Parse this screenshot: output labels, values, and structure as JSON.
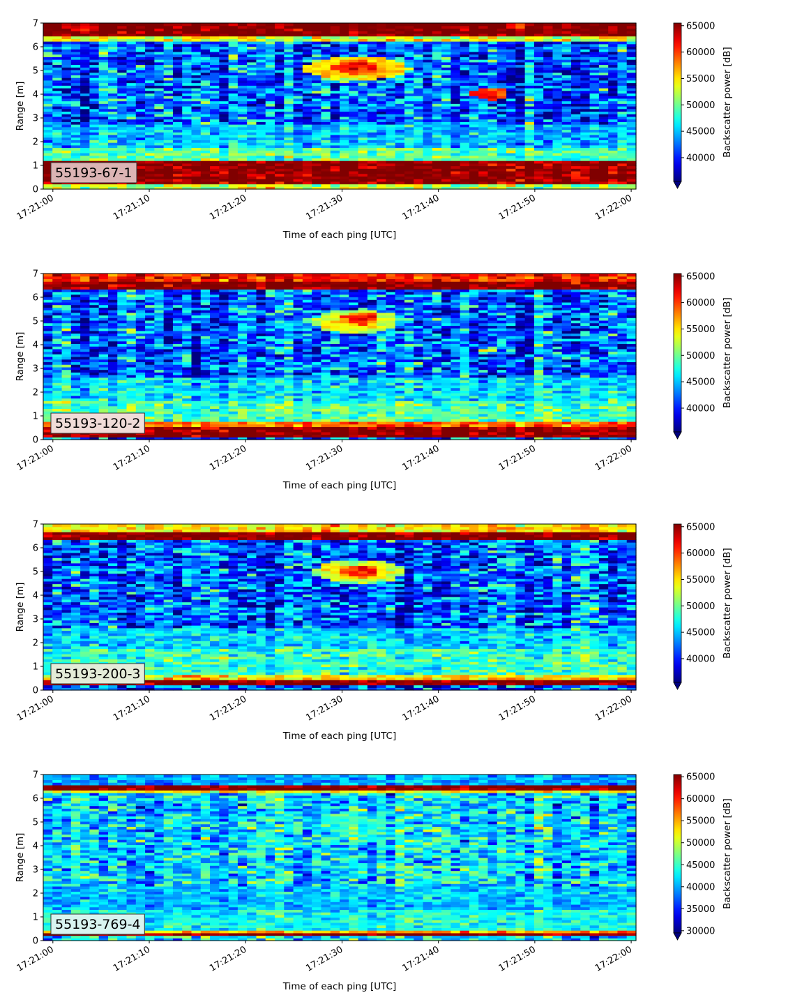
{
  "chart_data": [
    {
      "type": "heatmap",
      "label": "55193-67-1",
      "label_bg": "#dcb4b4",
      "xlabel": "Time of each ping [UTC]",
      "ylabel": "Range [m]",
      "xlim": [
        "17:20:59",
        "17:22:00.5"
      ],
      "ylim": [
        0,
        7
      ],
      "xticks": [
        "17:21:00",
        "17:21:10",
        "17:21:20",
        "17:21:30",
        "17:21:40",
        "17:21:50",
        "17:22:00"
      ],
      "yticks": [
        0,
        1,
        2,
        3,
        4,
        5,
        6,
        7
      ],
      "colorbar": {
        "label": "Backscatter power [dB]",
        "ticks": [
          40000,
          45000,
          50000,
          55000,
          60000,
          65000
        ],
        "range": [
          35500,
          65500
        ],
        "extend": "min"
      },
      "features": [
        {
          "type": "band",
          "ymin": 6.45,
          "ymax": 7.0,
          "value": 66000
        },
        {
          "type": "band",
          "ymin": 6.25,
          "ymax": 6.45,
          "value": 53000
        },
        {
          "type": "band",
          "ymin": 0.2,
          "ymax": 1.15,
          "value": 65500
        },
        {
          "type": "band",
          "ymin": 0.0,
          "ymax": 0.2,
          "value": 52000
        },
        {
          "type": "band",
          "ymin": 1.15,
          "ymax": 1.7,
          "value": 49500
        },
        {
          "type": "band",
          "ymin": 1.7,
          "ymax": 2.7,
          "value": 45000
        },
        {
          "type": "blob",
          "t": [
            26,
            37
          ],
          "y": [
            4.6,
            5.6
          ],
          "value": 57000
        },
        {
          "type": "blob",
          "t": [
            29,
            34
          ],
          "y": [
            4.85,
            5.45
          ],
          "value": 62000
        },
        {
          "type": "blob",
          "t": [
            43.5,
            47.5
          ],
          "y": [
            3.75,
            4.25
          ],
          "value": 62500
        }
      ]
    },
    {
      "type": "heatmap",
      "label": "55193-120-2",
      "label_bg": "#f0dcd8",
      "xlabel": "Time of each ping [UTC]",
      "ylabel": "Range [m]",
      "xlim": [
        "17:20:59",
        "17:22:00.5"
      ],
      "ylim": [
        0,
        7
      ],
      "xticks": [
        "17:21:00",
        "17:21:10",
        "17:21:20",
        "17:21:30",
        "17:21:40",
        "17:21:50",
        "17:22:00"
      ],
      "yticks": [
        0,
        1,
        2,
        3,
        4,
        5,
        6,
        7
      ],
      "colorbar": {
        "label": "Backscatter power [dB]",
        "ticks": [
          40000,
          45000,
          50000,
          55000,
          60000,
          65000
        ],
        "range": [
          35500,
          65500
        ],
        "extend": "min"
      },
      "features": [
        {
          "type": "band",
          "ymin": 6.3,
          "ymax": 6.7,
          "value": 66000
        },
        {
          "type": "band",
          "ymin": 6.7,
          "ymax": 7.0,
          "value": 61000
        },
        {
          "type": "band",
          "ymin": 0.1,
          "ymax": 0.55,
          "value": 65500
        },
        {
          "type": "band",
          "ymin": 0.55,
          "ymax": 0.75,
          "value": 59000
        },
        {
          "type": "band",
          "ymin": 0.75,
          "ymax": 1.6,
          "value": 49000
        },
        {
          "type": "band",
          "ymin": 1.6,
          "ymax": 2.6,
          "value": 46000
        },
        {
          "type": "blob",
          "t": [
            27,
            36
          ],
          "y": [
            4.5,
            5.5
          ],
          "value": 55000
        },
        {
          "type": "blob",
          "t": [
            30,
            34
          ],
          "y": [
            4.85,
            5.35
          ],
          "value": 61500
        },
        {
          "type": "blob",
          "t": [
            44.5,
            46.5
          ],
          "y": [
            3.7,
            3.9
          ],
          "value": 55000
        }
      ]
    },
    {
      "type": "heatmap",
      "label": "55193-200-3",
      "label_bg": "#e4ecd8",
      "xlabel": "Time of each ping [UTC]",
      "ylabel": "Range [m]",
      "xlim": [
        "17:20:59",
        "17:22:00.5"
      ],
      "ylim": [
        0,
        7
      ],
      "xticks": [
        "17:21:00",
        "17:21:10",
        "17:21:20",
        "17:21:30",
        "17:21:40",
        "17:21:50",
        "17:22:00"
      ],
      "yticks": [
        0,
        1,
        2,
        3,
        4,
        5,
        6,
        7
      ],
      "colorbar": {
        "label": "Backscatter power [dB]",
        "ticks": [
          40000,
          45000,
          50000,
          55000,
          60000,
          65000
        ],
        "range": [
          35500,
          65500
        ],
        "extend": "min"
      },
      "features": [
        {
          "type": "band",
          "ymin": 6.3,
          "ymax": 6.7,
          "value": 66000
        },
        {
          "type": "band",
          "ymin": 6.7,
          "ymax": 7.0,
          "value": 55000
        },
        {
          "type": "band",
          "ymin": 0.2,
          "ymax": 0.45,
          "value": 65500
        },
        {
          "type": "band",
          "ymin": 0.45,
          "ymax": 0.7,
          "value": 55000
        },
        {
          "type": "band",
          "ymin": 0.7,
          "ymax": 1.7,
          "value": 48500
        },
        {
          "type": "band",
          "ymin": 1.7,
          "ymax": 2.6,
          "value": 45500
        },
        {
          "type": "blob",
          "t": [
            27,
            36.5
          ],
          "y": [
            4.5,
            5.5
          ],
          "value": 55000
        },
        {
          "type": "blob",
          "t": [
            30,
            34
          ],
          "y": [
            4.75,
            5.3
          ],
          "value": 62000
        },
        {
          "type": "blob",
          "t": [
            37,
            42
          ],
          "y": [
            1.55,
            1.75
          ],
          "value": 51000
        }
      ]
    },
    {
      "type": "heatmap",
      "label": "55193-769-4",
      "label_bg": "#d8f4f0",
      "xlabel": "Time of each ping [UTC]",
      "ylabel": "Range [m]",
      "xlim": [
        "17:20:59",
        "17:22:00.5"
      ],
      "ylim": [
        0,
        7
      ],
      "xticks": [
        "17:21:00",
        "17:21:10",
        "17:21:20",
        "17:21:30",
        "17:21:40",
        "17:21:50",
        "17:22:00"
      ],
      "yticks": [
        0,
        1,
        2,
        3,
        4,
        5,
        6,
        7
      ],
      "colorbar": {
        "label": "Backscatter power [dB]",
        "ticks": [
          30000,
          35000,
          40000,
          45000,
          50000,
          55000,
          60000,
          65000
        ],
        "range": [
          29500,
          65500
        ],
        "extend": "min"
      },
      "features": [
        {
          "type": "band",
          "ymin": 6.35,
          "ymax": 6.55,
          "value": 66000
        },
        {
          "type": "band",
          "ymin": 6.2,
          "ymax": 6.35,
          "value": 52000
        },
        {
          "type": "band",
          "ymin": 6.55,
          "ymax": 7.0,
          "value": 40000
        },
        {
          "type": "band",
          "ymin": 0.2,
          "ymax": 0.3,
          "value": 65500
        },
        {
          "type": "band",
          "ymin": 0.3,
          "ymax": 0.45,
          "value": 55000
        },
        {
          "type": "band",
          "ymin": 0.45,
          "ymax": 1.3,
          "value": 43500
        },
        {
          "type": "band",
          "ymin": 1.3,
          "ymax": 2.3,
          "value": 41000
        },
        {
          "type": "blob",
          "t": [
            28,
            35
          ],
          "y": [
            4.4,
            5.4
          ],
          "value": 45000
        }
      ]
    }
  ]
}
